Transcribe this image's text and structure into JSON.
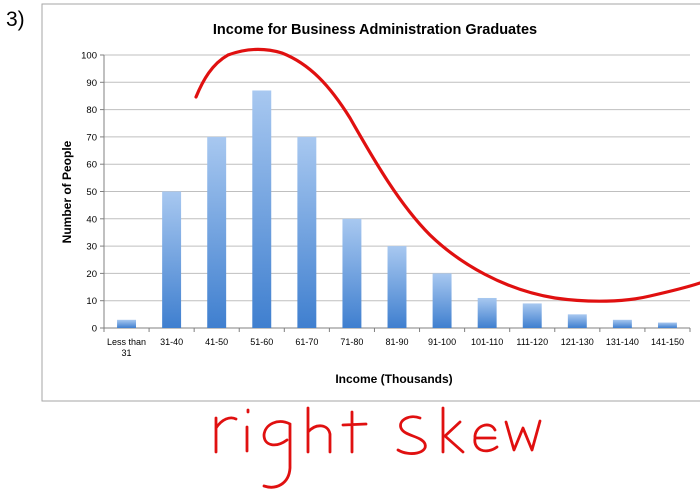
{
  "question_number": "3)",
  "annotation": {
    "text": "right skew",
    "ink_color": "#e01010"
  },
  "chart_data": {
    "type": "bar",
    "title": "Income for Business Administration Graduates",
    "xlabel": "Income (Thousands)",
    "ylabel": "Number of People",
    "categories": [
      "Less than 31",
      "31-40",
      "41-50",
      "51-60",
      "61-70",
      "71-80",
      "81-90",
      "91-100",
      "101-110",
      "111-120",
      "121-130",
      "131-140",
      "141-150"
    ],
    "values": [
      3,
      50,
      70,
      87,
      70,
      40,
      30,
      20,
      11,
      9,
      5,
      3,
      2
    ],
    "ylim": [
      0,
      100
    ],
    "yticks": [
      0,
      10,
      20,
      30,
      40,
      50,
      60,
      70,
      80,
      90,
      100
    ],
    "grid": true,
    "legend": "none",
    "bar_color_top": "#a8c8f0",
    "bar_color_bottom": "#3f7fcf",
    "grid_color": "#bfbfbf"
  }
}
